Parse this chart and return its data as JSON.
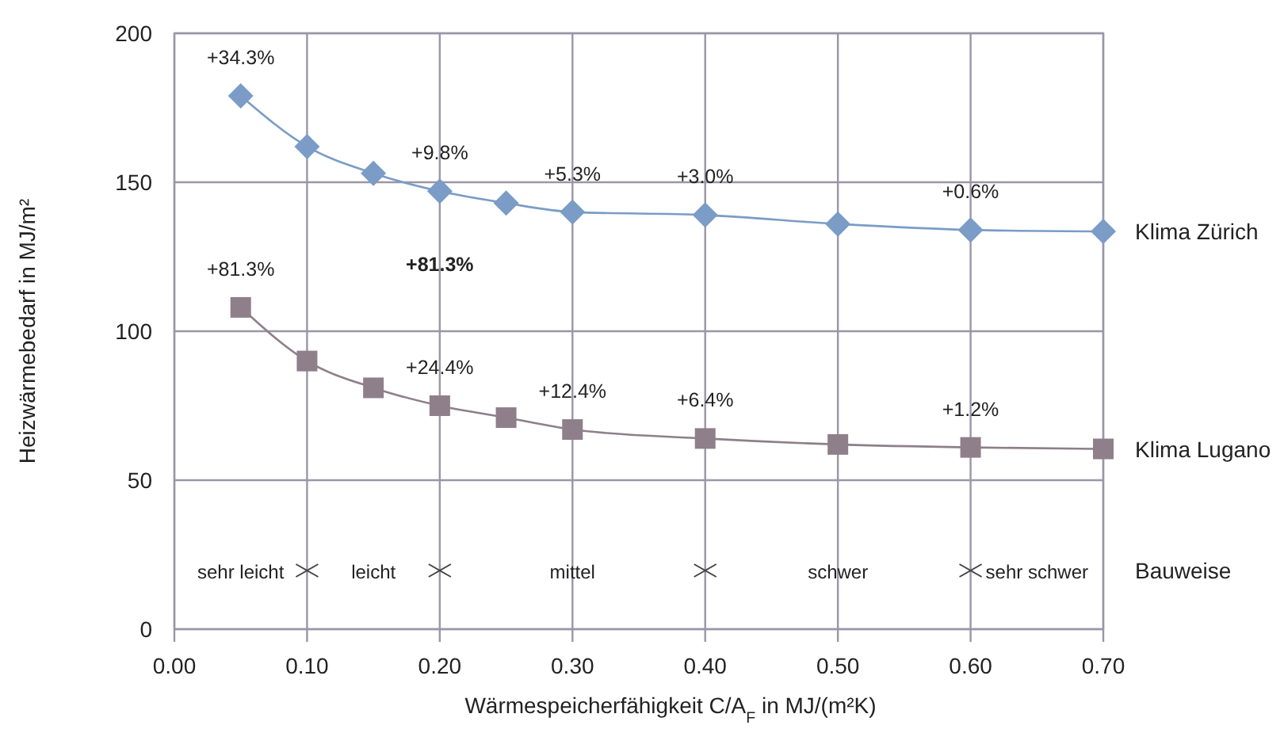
{
  "chart_data": {
    "type": "line",
    "xlabel": "Wärmespeicherfähigkeit C/A$_{F}$ in MJ/(m²K)",
    "ylabel": "Heizwärmebedarf in MJ/m²",
    "x": [
      0.05,
      0.1,
      0.15,
      0.2,
      0.25,
      0.3,
      0.4,
      0.5,
      0.6,
      0.7
    ],
    "series": [
      {
        "name": "Klima Zürich",
        "color": "#7a9cc6",
        "marker": "diamond",
        "values": [
          179,
          162,
          153,
          147,
          143,
          140,
          139,
          136,
          134,
          133.5
        ]
      },
      {
        "name": "Klima Lugano",
        "color": "#8e7f8a",
        "marker": "square",
        "values": [
          108,
          90,
          81,
          75,
          71,
          67,
          64,
          62,
          61,
          60.5
        ]
      }
    ],
    "xlim": [
      0,
      0.7
    ],
    "ylim": [
      0,
      200
    ],
    "xticks": [
      {
        "value": 0,
        "label": "0.00"
      },
      {
        "value": 0.1,
        "label": "0.10"
      },
      {
        "value": 0.2,
        "label": "0.20"
      },
      {
        "value": 0.3,
        "label": "0.30"
      },
      {
        "value": 0.4,
        "label": "0.40"
      },
      {
        "value": 0.5,
        "label": "0.50"
      },
      {
        "value": 0.6,
        "label": "0.60"
      },
      {
        "value": 0.7,
        "label": "0.70"
      }
    ],
    "yticks": [
      0,
      50,
      100,
      150,
      200
    ],
    "grid": true,
    "line_style": "solid",
    "annotations": [
      {
        "text": "+34.3%",
        "x": 0.05,
        "y": 179
      },
      {
        "text": "+9.8%",
        "x": 0.2,
        "y": 147
      },
      {
        "text": "+5.3%",
        "x": 0.3,
        "y": 140
      },
      {
        "text": "+3.0%",
        "x": 0.4,
        "y": 139
      },
      {
        "text": "+0.6%",
        "x": 0.6,
        "y": 134
      },
      {
        "text": "+81.3%",
        "x": 0.05,
        "y": 108
      },
      {
        "text": "+24.4%",
        "x": 0.2,
        "y": 75
      },
      {
        "text": "+12.4%",
        "x": 0.3,
        "y": 67
      },
      {
        "text": "+6.4%",
        "x": 0.4,
        "y": 64
      },
      {
        "text": "+1.2%",
        "x": 0.6,
        "y": 61
      },
      "+81.3%",
      "sehr leicht",
      "leicht",
      "mittel",
      "schwer",
      "sehr schwer",
      "Bauweise"
    ]
  }
}
